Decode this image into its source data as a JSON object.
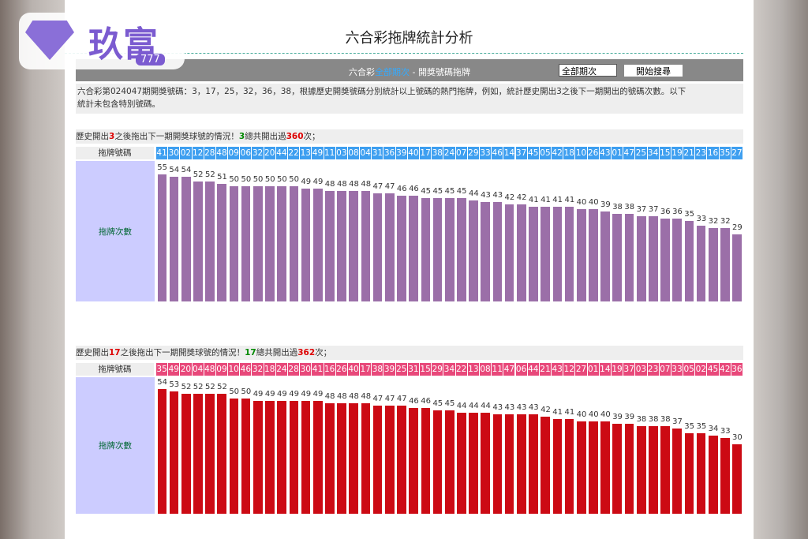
{
  "logo": {
    "text": "玖富",
    "badge": "777"
  },
  "title": "六合彩拖牌統計分析",
  "toolbar": {
    "prefix": "六合彩",
    "link": "全部期次",
    "suffix": " - 開獎號碼拖牌",
    "select": "全部期次",
    "button": "開始搜尋"
  },
  "description": [
    "六合彩第024047期開獎號碼：3，17，25，32，36，38，根據歷史開獎號碼分別統計以上號碼的熱門拖牌，例如，統計歷史開出3之後下一期開出的號碼次數。以下",
    "統計未包含特別號碼。"
  ],
  "charts": [
    {
      "heading": [
        "歷史開出",
        "3",
        "之後拖出下一期開獎球號的情況！",
        "3",
        "總共開出過",
        "360",
        "次；"
      ],
      "row_label": "拖牌號碼",
      "value_label": "拖牌次數",
      "color": "#9b6fa8",
      "number_bg": "#3e9ff0",
      "categories": [
        "41",
        "30",
        "02",
        "12",
        "28",
        "48",
        "09",
        "06",
        "32",
        "20",
        "44",
        "22",
        "13",
        "49",
        "11",
        "03",
        "08",
        "04",
        "31",
        "36",
        "39",
        "40",
        "17",
        "38",
        "24",
        "07",
        "29",
        "33",
        "46",
        "14",
        "37",
        "45",
        "05",
        "42",
        "18",
        "10",
        "26",
        "43",
        "01",
        "47",
        "25",
        "34",
        "15",
        "19",
        "21",
        "23",
        "16",
        "35",
        "27"
      ],
      "values": [
        55,
        54,
        54,
        52,
        52,
        51,
        50,
        50,
        50,
        50,
        50,
        50,
        49,
        49,
        48,
        48,
        48,
        48,
        47,
        47,
        46,
        46,
        45,
        45,
        45,
        45,
        44,
        43,
        43,
        42,
        42,
        41,
        41,
        41,
        41,
        40,
        40,
        39,
        38,
        38,
        37,
        37,
        36,
        36,
        35,
        33,
        32,
        32,
        29
      ]
    },
    {
      "heading": [
        "歷史開出",
        "17",
        "之後拖出下一期開獎球號的情況！",
        "17",
        "總共開出過",
        "362",
        "次；"
      ],
      "row_label": "拖牌號碼",
      "value_label": "拖牌次數",
      "color": "#cc0a14",
      "number_bg": "#e8487a",
      "categories": [
        "35",
        "49",
        "20",
        "04",
        "48",
        "09",
        "10",
        "46",
        "32",
        "18",
        "24",
        "28",
        "30",
        "41",
        "16",
        "26",
        "40",
        "17",
        "38",
        "39",
        "25",
        "31",
        "15",
        "29",
        "34",
        "22",
        "13",
        "08",
        "11",
        "47",
        "06",
        "44",
        "21",
        "43",
        "12",
        "27",
        "01",
        "14",
        "19",
        "37",
        "03",
        "23",
        "07",
        "33",
        "05",
        "02",
        "45",
        "42",
        "36"
      ],
      "values": [
        54,
        53,
        52,
        52,
        52,
        52,
        50,
        50,
        49,
        49,
        49,
        49,
        49,
        49,
        48,
        48,
        48,
        48,
        47,
        47,
        47,
        46,
        46,
        45,
        45,
        44,
        44,
        44,
        43,
        43,
        43,
        43,
        42,
        41,
        41,
        40,
        40,
        40,
        39,
        39,
        38,
        38,
        38,
        37,
        35,
        35,
        34,
        33,
        30
      ]
    }
  ]
}
